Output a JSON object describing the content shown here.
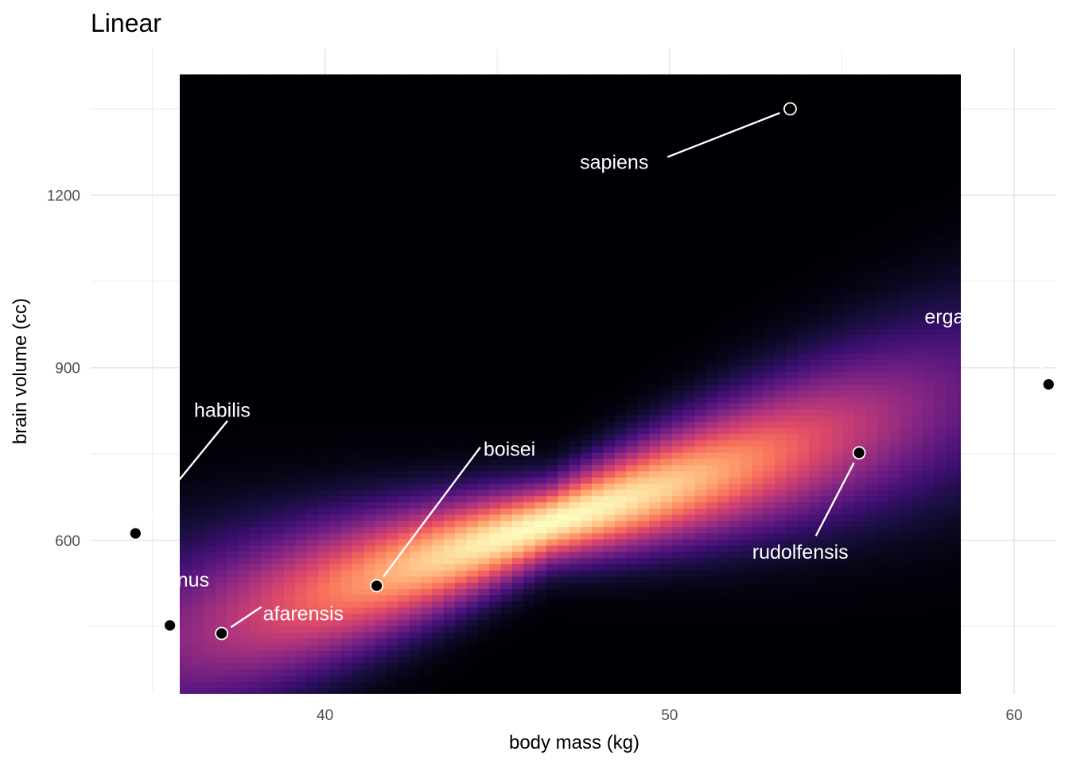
{
  "chart_data": {
    "type": "scatter",
    "title": "Linear",
    "xlabel": "body mass (kg)",
    "ylabel": "brain volume (cc)",
    "xlim": [
      33.2,
      61.2
    ],
    "ylim": [
      333,
      1455
    ],
    "xticks": [
      40,
      50,
      60
    ],
    "yticks": [
      600,
      900,
      1200
    ],
    "grid": true,
    "background": "posterior density heatmap (magma palette) along a linear fit",
    "density_fit": {
      "intercept": -230,
      "slope": 18.5
    },
    "points": [
      {
        "species": "afarensis",
        "x": 37.0,
        "y": 438
      },
      {
        "species": "africanus",
        "x": 35.5,
        "y": 452
      },
      {
        "species": "habilis",
        "x": 34.5,
        "y": 612
      },
      {
        "species": "boisei",
        "x": 41.5,
        "y": 521
      },
      {
        "species": "rudolfensis",
        "x": 55.5,
        "y": 752
      },
      {
        "species": "ergaster",
        "x": 61.0,
        "y": 871
      },
      {
        "species": "sapiens",
        "x": 53.5,
        "y": 1350
      }
    ],
    "label_positions": [
      {
        "x": 38.2,
        "y": 473
      },
      {
        "x": 34.3,
        "y": 532
      },
      {
        "x": 36.2,
        "y": 827
      },
      {
        "x": 44.6,
        "y": 759
      },
      {
        "x": 52.4,
        "y": 580
      },
      {
        "x": 57.4,
        "y": 989
      },
      {
        "x": 47.4,
        "y": 1258
      }
    ],
    "colors": {
      "point_fill": "#000000",
      "point_stroke": "#ffffff",
      "sapiens_point_fill": "#000000",
      "label_color": "#ffffff",
      "heatmap_palette": "magma"
    }
  }
}
